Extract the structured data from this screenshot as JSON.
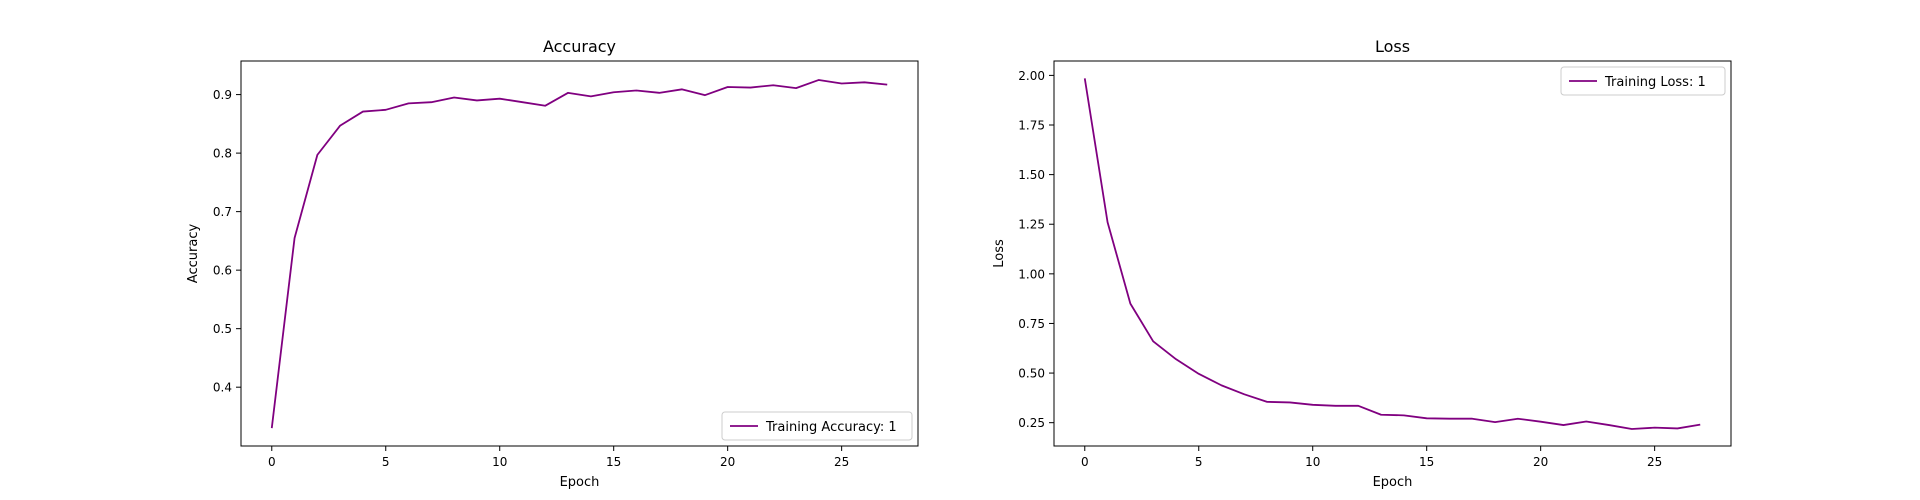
{
  "chart_data": [
    {
      "type": "line",
      "title": "Accuracy",
      "xlabel": "Epoch",
      "ylabel": "Accuracy",
      "xlim": [
        -1.35,
        28.35
      ],
      "ylim": [
        0.2995,
        0.9574
      ],
      "x_ticks": [
        0,
        5,
        10,
        15,
        20,
        25
      ],
      "x_tick_labels": [
        "0",
        "5",
        "10",
        "15",
        "20",
        "25"
      ],
      "y_ticks": [
        0.4,
        0.5,
        0.6,
        0.7,
        0.8,
        0.9
      ],
      "y_tick_labels": [
        "0.4",
        "0.5",
        "0.6",
        "0.7",
        "0.8",
        "0.9"
      ],
      "grid": false,
      "legend_position": "lower-right",
      "series": [
        {
          "name": "Training Accuracy: 1",
          "color": "#800080",
          "x": [
            0,
            1,
            2,
            3,
            4,
            5,
            6,
            7,
            8,
            9,
            10,
            11,
            12,
            13,
            14,
            15,
            16,
            17,
            18,
            19,
            20,
            21,
            22,
            23,
            24,
            25,
            26,
            27
          ],
          "y": [
            0.33,
            0.655,
            0.797,
            0.847,
            0.871,
            0.874,
            0.885,
            0.887,
            0.895,
            0.89,
            0.893,
            0.887,
            0.881,
            0.903,
            0.897,
            0.904,
            0.907,
            0.903,
            0.909,
            0.899,
            0.913,
            0.912,
            0.916,
            0.911,
            0.925,
            0.919,
            0.921,
            0.917
          ]
        }
      ]
    },
    {
      "type": "line",
      "title": "Loss",
      "xlabel": "Epoch",
      "ylabel": "Loss",
      "xlim": [
        -1.35,
        28.35
      ],
      "ylim": [
        0.1325,
        2.0725
      ],
      "x_ticks": [
        0,
        5,
        10,
        15,
        20,
        25
      ],
      "x_tick_labels": [
        "0",
        "5",
        "10",
        "15",
        "20",
        "25"
      ],
      "y_ticks": [
        0.25,
        0.5,
        0.75,
        1.0,
        1.25,
        1.5,
        1.75,
        2.0
      ],
      "y_tick_labels": [
        "0.25",
        "0.50",
        "0.75",
        "1.00",
        "1.25",
        "1.50",
        "1.75",
        "2.00"
      ],
      "grid": false,
      "legend_position": "upper-right",
      "series": [
        {
          "name": "Training Loss: 1",
          "color": "#800080",
          "x": [
            0,
            1,
            2,
            3,
            4,
            5,
            6,
            7,
            8,
            9,
            10,
            11,
            12,
            13,
            14,
            15,
            16,
            17,
            18,
            19,
            20,
            21,
            22,
            23,
            24,
            25,
            26,
            27
          ],
          "y": [
            1.985,
            1.26,
            0.85,
            0.66,
            0.57,
            0.496,
            0.438,
            0.393,
            0.355,
            0.352,
            0.34,
            0.335,
            0.335,
            0.29,
            0.287,
            0.272,
            0.27,
            0.27,
            0.253,
            0.27,
            0.255,
            0.238,
            0.256,
            0.238,
            0.218,
            0.225,
            0.221,
            0.24
          ]
        }
      ]
    }
  ]
}
